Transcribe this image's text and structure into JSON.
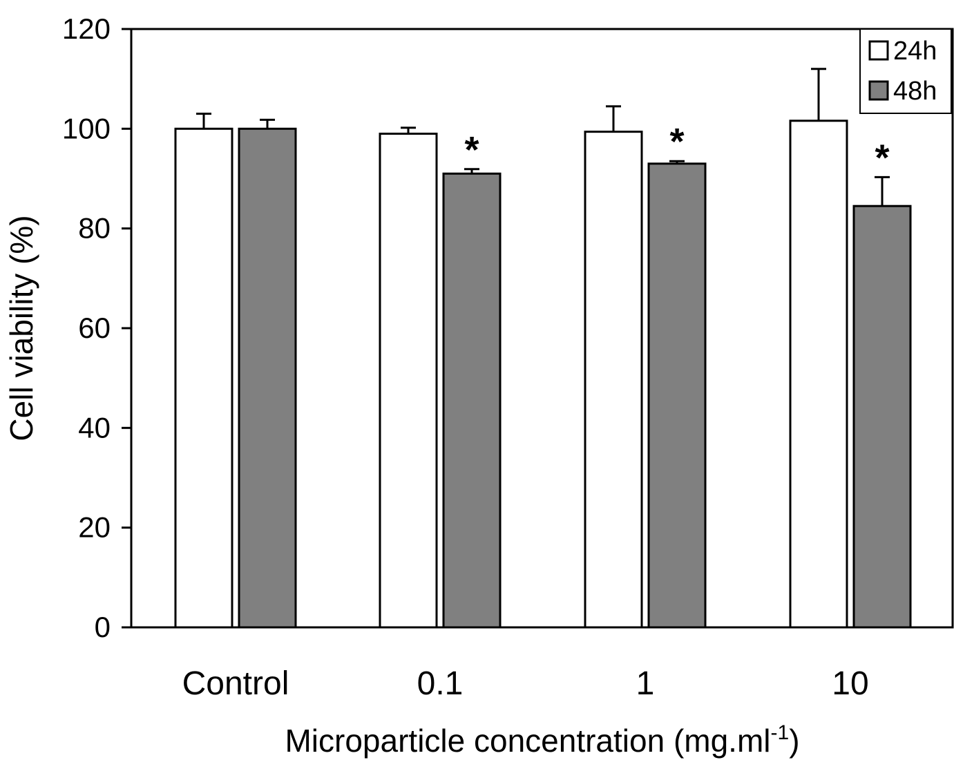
{
  "chart_data": {
    "type": "bar",
    "xlabel": "Microparticle concentration (mg.ml",
    "xlabel_superscript": "-1",
    "xlabel_suffix": ")",
    "ylabel": "Cell viability (%)",
    "categories": [
      "Control",
      "0.1",
      "1",
      "10"
    ],
    "ylim": [
      0,
      120
    ],
    "yticks": [
      0,
      20,
      40,
      60,
      80,
      100,
      120
    ],
    "grid": false,
    "legend_position": "top-right",
    "series": [
      {
        "name": "24h",
        "color": "#ffffff",
        "values": [
          100,
          99,
          99.4,
          101.6
        ],
        "errors": [
          3,
          1.2,
          5.1,
          10.4
        ],
        "significance": [
          "",
          "",
          "",
          ""
        ]
      },
      {
        "name": "48h",
        "color": "#808080",
        "values": [
          100,
          91,
          93,
          84.5
        ],
        "errors": [
          1.8,
          0.9,
          0.5,
          5.8
        ],
        "significance": [
          "",
          "*",
          "*",
          "*"
        ]
      }
    ]
  }
}
